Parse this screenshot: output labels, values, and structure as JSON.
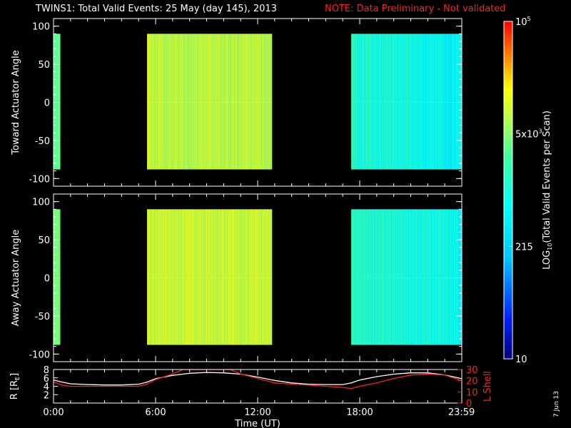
{
  "header": {
    "title": "TWINS1: Total Valid Events: 25 May (day 145), 2013",
    "note": "NOTE: Data Preliminary - Not validated",
    "note_color": "#ff2020"
  },
  "footer": {
    "date_stamp": "7 Jun 13"
  },
  "chart_data": [
    {
      "type": "heatmap",
      "name": "toward",
      "ylabel": "Toward Actuator Angle",
      "ylim": [
        -110,
        110
      ],
      "yticks": [
        -100,
        -50,
        0,
        50,
        100
      ],
      "xlim": [
        0,
        24
      ],
      "data_blocks": [
        {
          "x": [
            0.0,
            0.4
          ],
          "y": [
            -88,
            90
          ],
          "level": 0.62
        },
        {
          "x": [
            5.5,
            12.85
          ],
          "y": [
            -88,
            90
          ],
          "level": 0.72
        },
        {
          "x": [
            17.5,
            24.0
          ],
          "y": [
            -88,
            90
          ],
          "level": 0.52
        }
      ]
    },
    {
      "type": "heatmap",
      "name": "away",
      "ylabel": "Away Actuator Angle",
      "ylim": [
        -110,
        110
      ],
      "yticks": [
        -100,
        -50,
        0,
        50,
        100
      ],
      "xlim": [
        0,
        24
      ],
      "data_blocks": [
        {
          "x": [
            0.0,
            0.4
          ],
          "y": [
            -88,
            90
          ],
          "level": 0.64
        },
        {
          "x": [
            5.5,
            12.85
          ],
          "y": [
            -88,
            90
          ],
          "level": 0.74
        },
        {
          "x": [
            17.5,
            24.0
          ],
          "y": [
            -88,
            90
          ],
          "level": 0.54
        }
      ]
    },
    {
      "type": "line",
      "name": "ephemeris",
      "ylabel": "R [R",
      "ylabel_sub": "E",
      "ylabel_end": "]",
      "y2label": "L Shell",
      "xlabel": "Time (UT)",
      "xlim": [
        0,
        24
      ],
      "xticks": [
        {
          "value": 0,
          "label": "0:00"
        },
        {
          "value": 6,
          "label": "6:00"
        },
        {
          "value": 12,
          "label": "12:00"
        },
        {
          "value": 18,
          "label": "18:00"
        },
        {
          "value": 23.983,
          "label": "23:59"
        }
      ],
      "ylim": [
        0,
        8
      ],
      "yticks": [
        2,
        4,
        6,
        8
      ],
      "y2lim": [
        0,
        30
      ],
      "y2ticks": [
        0,
        10,
        20,
        30
      ],
      "y2_color": "#ff2020",
      "series": [
        {
          "axis": "left",
          "color": "#ffffff",
          "x": [
            0,
            0.5,
            1,
            2,
            3,
            4,
            5,
            5.5,
            6,
            7,
            8,
            9,
            10,
            11,
            12,
            13,
            14,
            15,
            16,
            17,
            17.5,
            18,
            19,
            20,
            21,
            22,
            23,
            24
          ],
          "y": [
            5.5,
            5.0,
            4.6,
            4.4,
            4.3,
            4.3,
            4.5,
            5.0,
            5.8,
            6.6,
            7.1,
            7.3,
            7.2,
            6.9,
            6.2,
            5.4,
            4.8,
            4.5,
            4.4,
            4.4,
            4.8,
            5.5,
            6.3,
            6.9,
            7.2,
            7.2,
            6.7,
            5.8
          ]
        },
        {
          "axis": "right",
          "color": "#ff2020",
          "x": [
            0,
            0.5,
            1,
            2,
            3,
            4,
            5,
            5.5,
            6,
            7,
            7.6,
            10.4,
            11,
            12,
            13,
            14,
            15,
            16,
            17,
            17.5,
            18,
            19,
            20,
            21,
            22,
            23,
            24
          ],
          "y": [
            19,
            16,
            15,
            15,
            15,
            15,
            15,
            17,
            21,
            26,
            30,
            30,
            26,
            22,
            18,
            17,
            16,
            15,
            14,
            13,
            15,
            18,
            22,
            25,
            26,
            25,
            20
          ]
        }
      ]
    }
  ],
  "colorbar": {
    "label": "LOG",
    "label_sub": "10",
    "label_rest": "(Total Valid Events per Scan)",
    "ticks": [
      {
        "label": "10",
        "frac": 0.0
      },
      {
        "label": "215",
        "frac": 0.333
      },
      {
        "label": "5x10",
        "sup": "3",
        "frac": 0.667
      },
      {
        "label": "10",
        "sup": "5",
        "frac": 1.0
      }
    ]
  },
  "colors": {
    "axis": "#ffffff",
    "background": "#000000"
  }
}
